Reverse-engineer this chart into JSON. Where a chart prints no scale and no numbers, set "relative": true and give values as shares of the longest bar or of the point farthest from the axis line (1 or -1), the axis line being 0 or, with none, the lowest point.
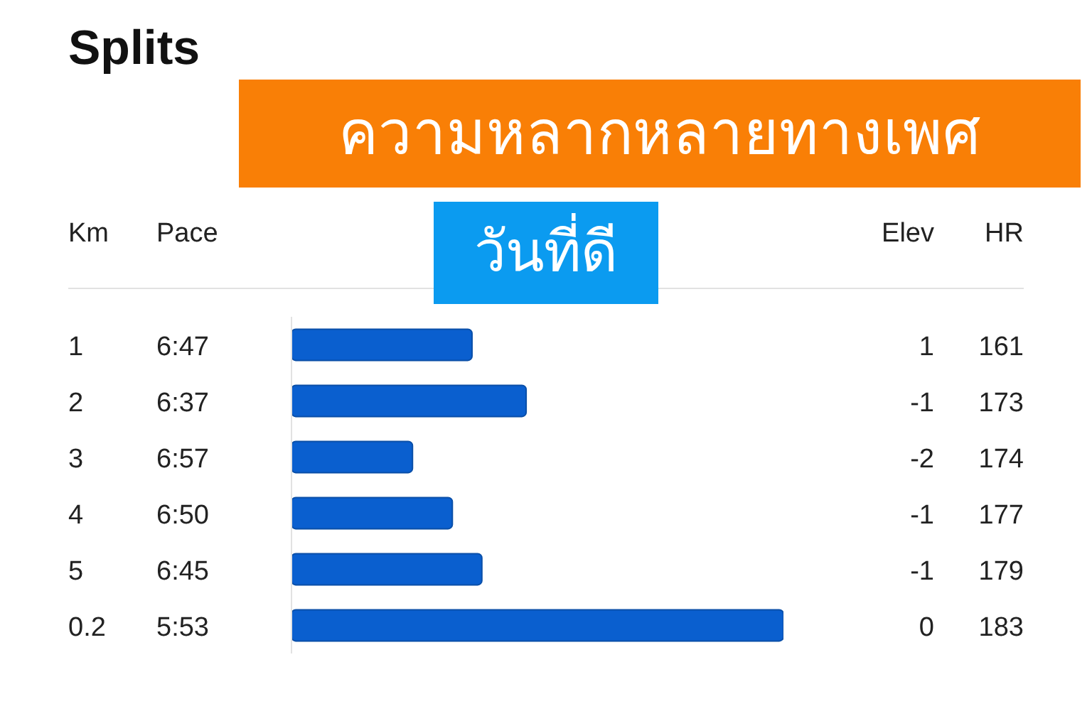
{
  "chart_data": {
    "type": "bar",
    "orientation": "horizontal",
    "relative": true,
    "title": "Splits",
    "ylabel": "Km",
    "categories": [
      "1",
      "2",
      "3",
      "4",
      "5",
      "0.2"
    ],
    "series": [
      {
        "name": "Pace",
        "color": "#0a5fcf",
        "values": [
          0.367,
          0.477,
          0.246,
          0.327,
          0.387,
          1
        ]
      }
    ],
    "annotations": [
      "ความหลากหลายทางเพศ",
      "วันที่ดี",
      "Elev",
      "HR",
      "6:47",
      "1",
      "161",
      "6:37",
      "-1",
      "173",
      "6:57",
      "-2",
      "174",
      "6:50",
      "-1",
      "177",
      "6:45",
      "-1",
      "179",
      "5:53",
      "0",
      "183"
    ]
  }
}
